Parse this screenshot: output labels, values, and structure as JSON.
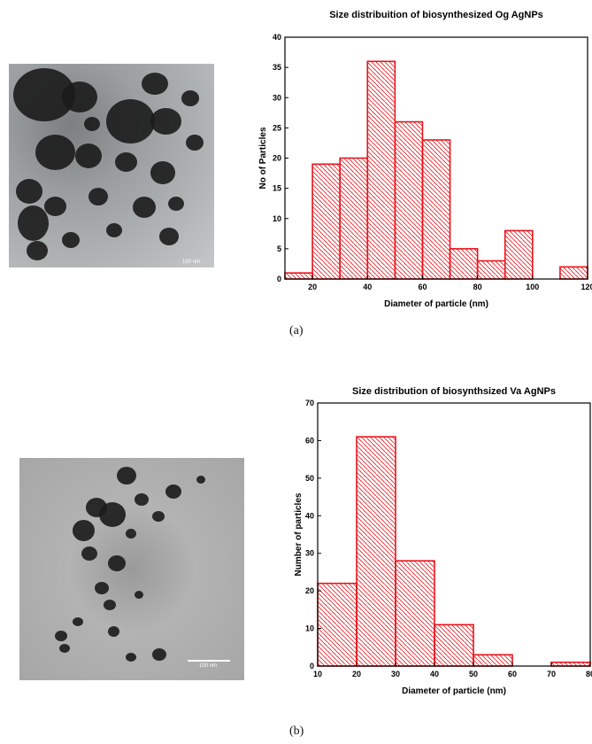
{
  "figures": [
    {
      "id": "a",
      "sub_label": "(a)",
      "micrograph": {
        "scale_bar_label": "100 nm"
      }
    },
    {
      "id": "b",
      "sub_label": "(b)",
      "micrograph": {
        "scale_bar_label": "100 nm"
      }
    }
  ],
  "chart_data": [
    {
      "type": "bar",
      "title": "Size distribuition of biosynthesized Og AgNPs",
      "xlabel": "Diameter of particle (nm)",
      "ylabel": "No of Particles",
      "xlim": [
        10,
        120
      ],
      "ylim": [
        0,
        40
      ],
      "xticks": [
        20,
        40,
        60,
        80,
        100,
        120
      ],
      "yticks": [
        0,
        5,
        10,
        15,
        20,
        25,
        30,
        35,
        40
      ],
      "bin_width": 10,
      "bins": [
        {
          "x0": 10,
          "x1": 20,
          "value": 1
        },
        {
          "x0": 20,
          "x1": 30,
          "value": 19
        },
        {
          "x0": 30,
          "x1": 40,
          "value": 20
        },
        {
          "x0": 40,
          "x1": 50,
          "value": 36
        },
        {
          "x0": 50,
          "x1": 60,
          "value": 26
        },
        {
          "x0": 60,
          "x1": 70,
          "value": 23
        },
        {
          "x0": 70,
          "x1": 80,
          "value": 5
        },
        {
          "x0": 80,
          "x1": 90,
          "value": 3
        },
        {
          "x0": 90,
          "x1": 100,
          "value": 8
        },
        {
          "x0": 110,
          "x1": 120,
          "value": 2
        }
      ],
      "bar_color": "#e8141c",
      "hatch": "diagonal"
    },
    {
      "type": "bar",
      "title": "Size distribution of biosynthsized Va AgNPs",
      "xlabel": "Diameter of particle (nm)",
      "ylabel": "Number of particles",
      "xlim": [
        10,
        80
      ],
      "ylim": [
        0,
        70
      ],
      "xticks": [
        10,
        20,
        30,
        40,
        50,
        60,
        70,
        80
      ],
      "yticks": [
        0,
        10,
        20,
        30,
        40,
        50,
        60,
        70
      ],
      "bin_width": 10,
      "bins": [
        {
          "x0": 10,
          "x1": 20,
          "value": 22
        },
        {
          "x0": 20,
          "x1": 30,
          "value": 61
        },
        {
          "x0": 30,
          "x1": 40,
          "value": 28
        },
        {
          "x0": 40,
          "x1": 50,
          "value": 11
        },
        {
          "x0": 50,
          "x1": 60,
          "value": 3
        },
        {
          "x0": 70,
          "x1": 80,
          "value": 1
        }
      ],
      "bar_color": "#e8141c",
      "hatch": "diagonal"
    }
  ]
}
